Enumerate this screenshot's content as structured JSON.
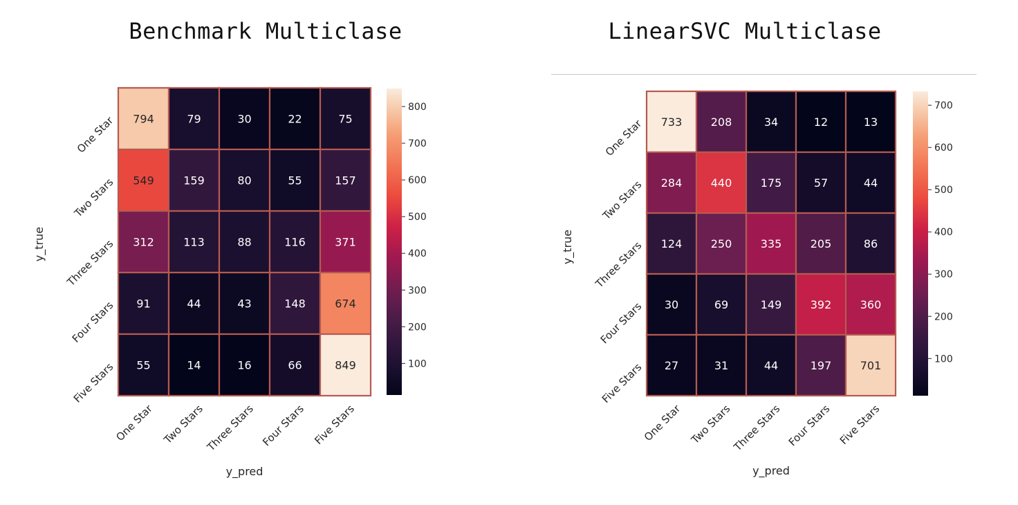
{
  "chart_data": [
    {
      "type": "heatmap",
      "title": "Benchmark Multiclase",
      "xlabel": "y_pred",
      "ylabel": "y_true",
      "x_categories": [
        "One Star",
        "Two Stars",
        "Three Stars",
        "Four Stars",
        "Five Stars"
      ],
      "y_categories": [
        "One Star",
        "Two Stars",
        "Three Stars",
        "Four Stars",
        "Five Stars"
      ],
      "values": [
        [
          794,
          79,
          30,
          22,
          75
        ],
        [
          549,
          159,
          80,
          55,
          157
        ],
        [
          312,
          113,
          88,
          116,
          371
        ],
        [
          91,
          44,
          43,
          148,
          674
        ],
        [
          55,
          14,
          16,
          66,
          849
        ]
      ],
      "colorbar": {
        "min": 14,
        "max": 849,
        "ticks": [
          100,
          200,
          300,
          400,
          500,
          600,
          700,
          800
        ]
      },
      "colormap": "rocket",
      "cell_border_color": "#b65a50"
    },
    {
      "type": "heatmap",
      "title": "LinearSVC Multiclase",
      "xlabel": "y_pred",
      "ylabel": "y_true",
      "x_categories": [
        "One Star",
        "Two Stars",
        "Three Stars",
        "Four Stars",
        "Five Stars"
      ],
      "y_categories": [
        "One Star",
        "Two Stars",
        "Three Stars",
        "Four Stars",
        "Five Stars"
      ],
      "values": [
        [
          733,
          208,
          34,
          12,
          13
        ],
        [
          284,
          440,
          175,
          57,
          44
        ],
        [
          124,
          250,
          335,
          205,
          86
        ],
        [
          30,
          69,
          149,
          392,
          360
        ],
        [
          27,
          31,
          44,
          197,
          701
        ]
      ],
      "colorbar": {
        "min": 12,
        "max": 733,
        "ticks": [
          100,
          200,
          300,
          400,
          500,
          600,
          700
        ]
      },
      "colormap": "rocket",
      "cell_border_color": "#b65a50"
    }
  ]
}
